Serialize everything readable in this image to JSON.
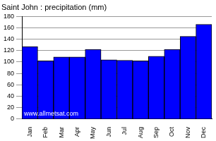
{
  "chart_data": {
    "type": "bar",
    "title": "Saint John : precipitation (mm)",
    "categories": [
      "Jan",
      "Feb",
      "Mar",
      "Apr",
      "May",
      "Jun",
      "Jul",
      "Aug",
      "Sep",
      "Oct",
      "Nov",
      "Dec"
    ],
    "values": [
      127,
      102,
      109,
      109,
      122,
      104,
      103,
      102,
      110,
      122,
      145,
      166
    ],
    "color": "#0000ff",
    "ylim": [
      0,
      180
    ],
    "yticks": [
      0,
      20,
      40,
      60,
      80,
      100,
      120,
      140,
      160,
      180
    ],
    "grid": true,
    "annotations": [
      "www.allmetsat.com"
    ]
  }
}
